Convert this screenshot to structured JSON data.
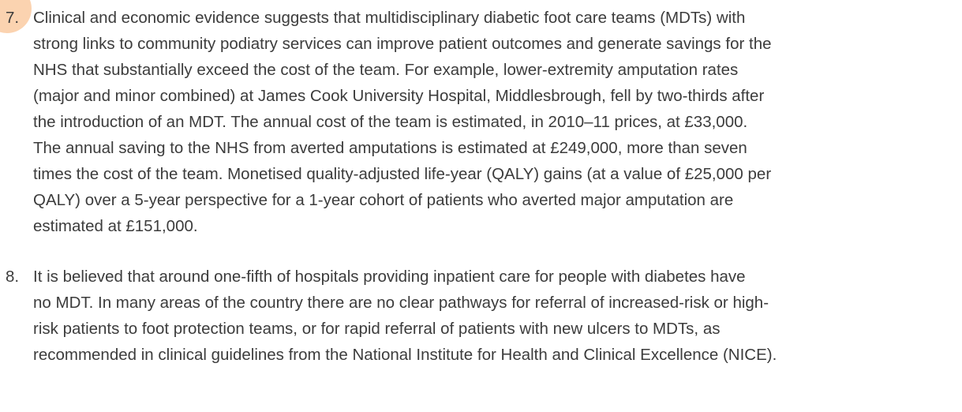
{
  "paragraphs": [
    {
      "number": "7.",
      "lines": [
        "Clinical and economic evidence suggests that multidisciplinary diabetic foot care teams (MDTs) with",
        "strong links to community podiatry services can improve patient outcomes and generate savings for the",
        "NHS that substantially exceed the cost of the team. For example, lower-extremity amputation rates",
        "(major and minor combined) at James Cook University Hospital, Middlesbrough, fell by two-thirds after",
        "the introduction of an MDT. The annual cost of the team is estimated, in 2010–11 prices, at £33,000.",
        "The annual saving to the NHS from averted amputations is estimated at £249,000, more than seven",
        "times the cost of the team. Monetised quality-adjusted life-year (QALY) gains (at a value of £25,000 per",
        "QALY) over a 5-year perspective for a 1-year cohort of patients who averted major amputation are",
        "estimated at £151,000."
      ]
    },
    {
      "number": "8.",
      "lines": [
        "It is believed that around one-fifth of hospitals providing inpatient care for people with diabetes have",
        "no MDT. In many areas of the country there are no clear pathways for referral of increased-risk or high-",
        "risk patients to foot protection teams, or for rapid referral of patients with new ulcers to MDTs, as",
        "recommended in clinical guidelines from the National Institute for Health and Clinical Excellence (NICE)."
      ]
    }
  ]
}
